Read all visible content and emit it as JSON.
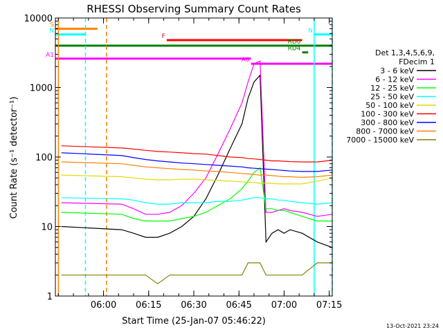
{
  "chart_data": {
    "type": "line",
    "title": "RHESSI Observing Summary Count Rates",
    "xlabel": "Start Time (25-Jan-07 05:46:22)",
    "ylabel": "Count Rate (s⁻¹ detector⁻¹)",
    "yscale": "log",
    "ylim": [
      1,
      10000
    ],
    "xlim_minutes": [
      -2,
      90
    ],
    "x_ticks": [
      {
        "label": "06:00",
        "minutes": 14
      },
      {
        "label": "06:15",
        "minutes": 29
      },
      {
        "label": "06:30",
        "minutes": 44
      },
      {
        "label": "06:45",
        "minutes": 59
      },
      {
        "label": "07:00",
        "minutes": 74
      },
      {
        "label": "07:15",
        "minutes": 89
      }
    ],
    "y_ticks": [
      {
        "label": "1",
        "value": 1
      },
      {
        "label": "10",
        "value": 10
      },
      {
        "label": "100",
        "value": 100
      },
      {
        "label": "1000",
        "value": 1000
      },
      {
        "label": "10000",
        "value": 10000
      }
    ],
    "legend": {
      "position": "right",
      "header": [
        "Det 1,3,4,5,6,9,",
        "FDecim 1"
      ],
      "entries": [
        {
          "name": "3 - 6 keV",
          "color": "#000000"
        },
        {
          "name": "6 - 12 keV",
          "color": "#ff00ff"
        },
        {
          "name": "12 - 25 keV",
          "color": "#00ff00"
        },
        {
          "name": "25 - 50 keV",
          "color": "#00ffff"
        },
        {
          "name": "50 - 100 keV",
          "color": "#dddd00"
        },
        {
          "name": "100 - 300 keV",
          "color": "#ff0000"
        },
        {
          "name": "300 - 800 keV",
          "color": "#0000ff"
        },
        {
          "name": "800 - 7000 keV",
          "color": "#ff8000"
        },
        {
          "name": "7000 - 15000 keV",
          "color": "#808000"
        }
      ]
    },
    "series": [
      {
        "name": "3 - 6 keV",
        "color": "#000000",
        "x": [
          0,
          20,
          24,
          28,
          32,
          36,
          40,
          44,
          48,
          52,
          56,
          60,
          62,
          64,
          66,
          68,
          70,
          72,
          74,
          76,
          80,
          85,
          90
        ],
        "y": [
          10,
          9,
          8,
          7,
          7,
          8,
          10,
          14,
          25,
          55,
          130,
          300,
          700,
          1200,
          1500,
          6,
          8,
          9,
          8,
          9,
          8,
          6,
          5
        ]
      },
      {
        "name": "6 - 12 keV",
        "color": "#ff00ff",
        "x": [
          0,
          20,
          24,
          28,
          32,
          36,
          40,
          44,
          48,
          52,
          56,
          60,
          62,
          64,
          66,
          68,
          70,
          72,
          74,
          76,
          80,
          85,
          90
        ],
        "y": [
          22,
          21,
          18,
          15,
          15,
          16,
          20,
          30,
          50,
          110,
          250,
          600,
          1200,
          2200,
          2400,
          16,
          16,
          17,
          18,
          17,
          16,
          14,
          15
        ]
      },
      {
        "name": "12 - 25 keV",
        "color": "#00ff00",
        "x": [
          0,
          20,
          24,
          28,
          32,
          36,
          40,
          44,
          48,
          52,
          56,
          60,
          62,
          64,
          66,
          68,
          70,
          72,
          74,
          76,
          80,
          85,
          90
        ],
        "y": [
          16,
          15,
          13,
          12,
          12,
          12,
          13,
          14,
          16,
          20,
          25,
          35,
          45,
          60,
          70,
          18,
          18,
          17,
          17,
          16,
          14,
          12,
          12
        ]
      },
      {
        "name": "25 - 50 keV",
        "color": "#00ffff",
        "x": [
          0,
          20,
          24,
          28,
          32,
          36,
          40,
          44,
          48,
          52,
          56,
          60,
          62,
          64,
          66,
          68,
          70,
          72,
          74,
          76,
          80,
          85,
          90
        ],
        "y": [
          26,
          25,
          24,
          22,
          21,
          21,
          22,
          22,
          22,
          23,
          23,
          24,
          25,
          26,
          26,
          25,
          25,
          24,
          24,
          23,
          22,
          21,
          22
        ]
      },
      {
        "name": "50 - 100 keV",
        "color": "#dddd00",
        "x": [
          0,
          20,
          24,
          28,
          32,
          36,
          40,
          44,
          48,
          52,
          56,
          60,
          62,
          64,
          66,
          68,
          70,
          72,
          74,
          76,
          80,
          85,
          90
        ],
        "y": [
          55,
          52,
          50,
          48,
          47,
          47,
          48,
          48,
          47,
          46,
          45,
          44,
          43,
          43,
          42,
          42,
          42,
          41,
          41,
          41,
          41,
          45,
          50
        ]
      },
      {
        "name": "100 - 300 keV",
        "color": "#ff0000",
        "x": [
          0,
          20,
          24,
          28,
          32,
          36,
          40,
          44,
          48,
          52,
          56,
          60,
          62,
          64,
          66,
          68,
          70,
          72,
          74,
          76,
          80,
          85,
          90
        ],
        "y": [
          145,
          135,
          130,
          125,
          120,
          118,
          115,
          112,
          110,
          105,
          100,
          98,
          95,
          94,
          92,
          90,
          88,
          88,
          87,
          86,
          85,
          85,
          90
        ]
      },
      {
        "name": "300 - 800 keV",
        "color": "#0000ff",
        "x": [
          0,
          20,
          24,
          28,
          32,
          36,
          40,
          44,
          48,
          52,
          56,
          60,
          62,
          64,
          66,
          68,
          70,
          72,
          74,
          76,
          80,
          85,
          90
        ],
        "y": [
          115,
          105,
          98,
          92,
          88,
          85,
          82,
          80,
          78,
          76,
          74,
          72,
          70,
          69,
          68,
          67,
          66,
          65,
          64,
          63,
          62,
          62,
          65
        ]
      },
      {
        "name": "800 - 7000 keV",
        "color": "#ff8000",
        "x": [
          0,
          20,
          24,
          28,
          32,
          36,
          40,
          44,
          48,
          52,
          56,
          60,
          62,
          64,
          66,
          68,
          70,
          72,
          74,
          76,
          80,
          85,
          90
        ],
        "y": [
          85,
          80,
          76,
          72,
          70,
          68,
          66,
          65,
          63,
          62,
          60,
          58,
          57,
          56,
          55,
          55,
          54,
          53,
          52,
          52,
          51,
          52,
          55
        ]
      },
      {
        "name": "7000 - 15000 keV",
        "color": "#808000",
        "x": [
          0,
          20,
          24,
          28,
          32,
          36,
          40,
          44,
          48,
          52,
          56,
          60,
          62,
          64,
          66,
          68,
          70,
          72,
          74,
          76,
          80,
          85,
          90
        ],
        "y": [
          2,
          2,
          2,
          2,
          1.5,
          2,
          2,
          2,
          2,
          2,
          2,
          2,
          3,
          3,
          3,
          2,
          2,
          2,
          2,
          2,
          2,
          3,
          3
        ]
      }
    ],
    "flag_bars": [
      {
        "label": "S",
        "color": "#ff8000",
        "y": 7000,
        "x0": -2,
        "x1": 12
      },
      {
        "label": "N",
        "color": "#00ffff",
        "y": 5800,
        "x0": -2,
        "x1": 8
      },
      {
        "label": "N",
        "color": "#00ffff",
        "y": 5800,
        "x0": 84,
        "x1": 90
      },
      {
        "label": "F",
        "color": "#ff0000",
        "y": 4800,
        "x0": 35,
        "x1": 80
      },
      {
        "label": "",
        "color": "#008000",
        "y": 4000,
        "x0": -2,
        "x1": 90
      },
      {
        "label": "RD0",
        "color": "#008000",
        "y": 4000,
        "x0": 80,
        "x1": 80
      },
      {
        "label": "RD4",
        "color": "#008000",
        "y": 3200,
        "x0": 80,
        "x1": 82
      },
      {
        "label": "A1",
        "color": "#ff00ff",
        "y": 2600,
        "x0": -2,
        "x1": 63
      },
      {
        "label": "A0",
        "color": "#ff00ff",
        "y": 2200,
        "x0": 63,
        "x1": 90
      }
    ],
    "vertical_markers": [
      {
        "minutes": -1,
        "color": "#ff8000",
        "style": "solid"
      },
      {
        "minutes": 8,
        "color": "#00ffff",
        "style": "dashed"
      },
      {
        "minutes": 15,
        "color": "#ff8000",
        "style": "dashed"
      },
      {
        "minutes": 84,
        "color": "#00ffff",
        "style": "solid"
      },
      {
        "minutes": 90,
        "color": "#00ffff",
        "style": "dashed"
      }
    ]
  },
  "footer_date": "13-Oct-2021 23:24"
}
